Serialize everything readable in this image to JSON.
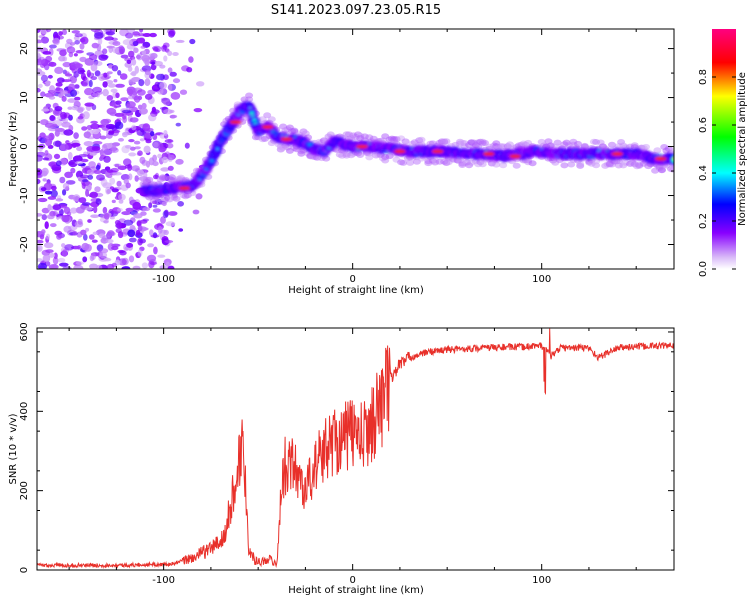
{
  "title": "S141.2023.097.23.05.R15",
  "chart_data": [
    {
      "type": "heatmap",
      "title": "S141.2023.097.23.05.R15",
      "xlabel": "Height of straight line (km)",
      "ylabel": "Frequency (Hz)",
      "xlim": [
        -167,
        170
      ],
      "ylim": [
        -25,
        24
      ],
      "xticks": [
        -100,
        0,
        100
      ],
      "yticks": [
        -20,
        -10,
        0,
        10,
        20
      ],
      "colorbar": {
        "label": "Normalized spectral amplitude",
        "range": [
          0,
          1
        ],
        "ticks": [
          "0.0",
          "0.2",
          "0.4",
          "0.6",
          "0.8"
        ],
        "colormap": [
          "#ffffff",
          "#d8b8f8",
          "#8800ff",
          "#0000ff",
          "#00ffff",
          "#00ff00",
          "#ffff00",
          "#ff0000",
          "#ff0080"
        ]
      },
      "ridge": {
        "x": [
          -105,
          -95,
          -85,
          -80,
          -75,
          -70,
          -65,
          -60,
          -55,
          -50,
          -45,
          -40,
          -35,
          -30,
          -25,
          -20,
          -15,
          -10,
          -5,
          0,
          10,
          20,
          30,
          40,
          50,
          60,
          70,
          80,
          85,
          90,
          95,
          100,
          110,
          120,
          130,
          140,
          150,
          160,
          170
        ],
        "y": [
          -9,
          -8.5,
          -8,
          -6,
          -3,
          1,
          4,
          7,
          8.5,
          3,
          4,
          2,
          1.5,
          1.5,
          0.5,
          -0.5,
          -1,
          1,
          0.5,
          0,
          0,
          -0.5,
          -1,
          -1,
          -1,
          -1.5,
          -1.5,
          -2,
          -1.5,
          -1.5,
          -1,
          -1,
          -1.5,
          -1.5,
          -1.5,
          -1.5,
          -1.5,
          -2.5,
          -2.5
        ],
        "amp": [
          0.45,
          0.5,
          0.55,
          0.45,
          0.4,
          0.35,
          0.35,
          0.4,
          0.5,
          0.55,
          0.6,
          0.65,
          0.7,
          0.75,
          0.7,
          0.6,
          0.7,
          0.75,
          0.8,
          0.85,
          0.8,
          0.75,
          0.8,
          0.85,
          0.8,
          0.7,
          0.75,
          0.7,
          0.65,
          0.7,
          0.75,
          0.7,
          0.75,
          0.7,
          0.75,
          0.8,
          0.75,
          0.8,
          0.75
        ]
      }
    },
    {
      "type": "line",
      "xlabel": "Height of straight line (km)",
      "ylabel": "SNR (10 * v/v)",
      "xlim": [
        -167,
        170
      ],
      "ylim": [
        0,
        610
      ],
      "xticks": [
        -100,
        0,
        100
      ],
      "yticks": [
        0,
        200,
        400,
        600
      ],
      "color": "#e8302a",
      "series": [
        {
          "x": [
            -167,
            -120,
            -95,
            -85,
            -75,
            -68,
            -63,
            -58,
            -55,
            -52,
            -48,
            -45,
            -40,
            -38,
            -35,
            -30,
            -25,
            -20,
            -15,
            -10,
            -5,
            0,
            5,
            10,
            15,
            20,
            25,
            30,
            40,
            50,
            60,
            70,
            80,
            90,
            95,
            100,
            102,
            105,
            110,
            120,
            125,
            130,
            140,
            150,
            160,
            170
          ],
          "y": [
            12,
            12,
            15,
            30,
            55,
            80,
            200,
            330,
            60,
            25,
            20,
            30,
            15,
            200,
            280,
            250,
            200,
            260,
            300,
            330,
            330,
            350,
            330,
            370,
            420,
            480,
            520,
            535,
            550,
            555,
            558,
            560,
            562,
            562,
            565,
            565,
            555,
            540,
            560,
            560,
            560,
            535,
            560,
            563,
            565,
            565
          ]
        }
      ]
    }
  ]
}
